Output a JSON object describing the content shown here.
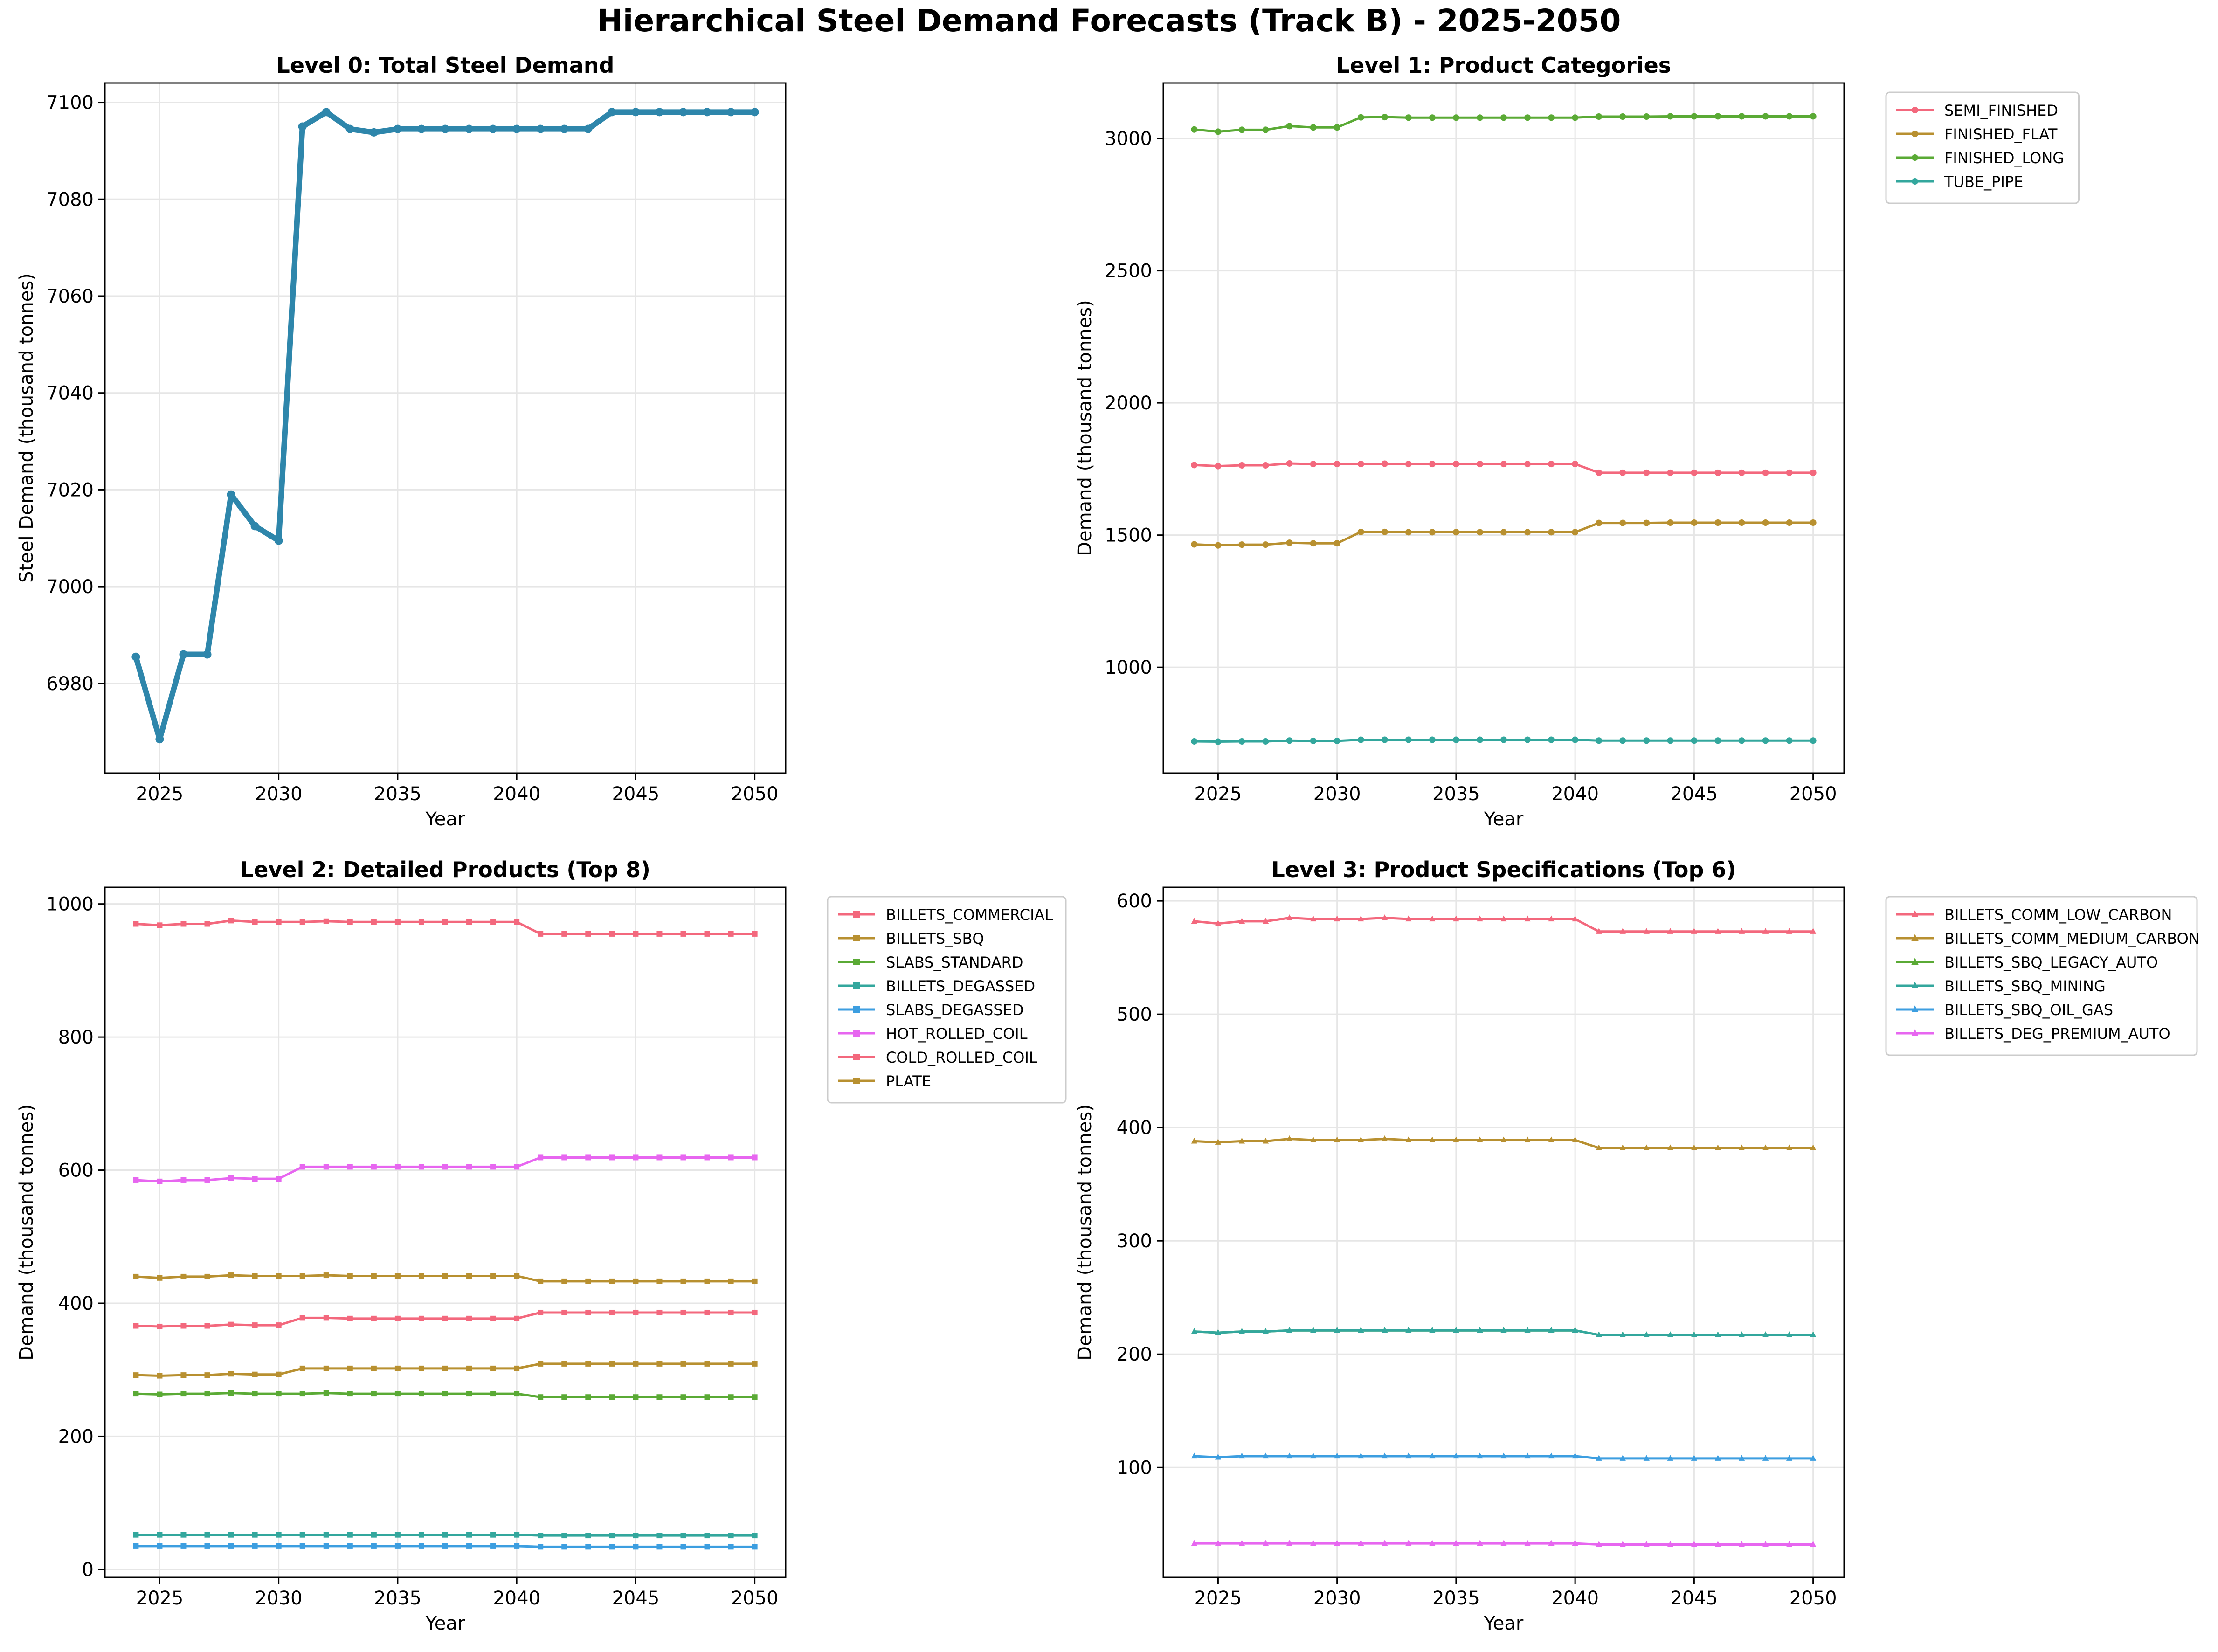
{
  "suptitle": "Hierarchical Steel Demand Forecasts (Track B) - 2025-2050",
  "chart_data": [
    {
      "id": "level0",
      "type": "line",
      "title": "Level 0: Total Steel Demand",
      "xlabel": "Year",
      "ylabel": "Steel Demand (thousand tonnes)",
      "xlim": [
        2022.7,
        2051.3
      ],
      "ylim": [
        6961.5,
        7104
      ],
      "xticks": [
        2025,
        2030,
        2035,
        2040,
        2045,
        2050
      ],
      "yticks": [
        6980,
        7000,
        7020,
        7040,
        7060,
        7080,
        7100
      ],
      "grid": true,
      "legend": "none",
      "x": [
        2024,
        2025,
        2026,
        2027,
        2028,
        2029,
        2030,
        2031,
        2032,
        2033,
        2034,
        2035,
        2036,
        2037,
        2038,
        2039,
        2040,
        2041,
        2042,
        2043,
        2044,
        2045,
        2046,
        2047,
        2048,
        2049,
        2050
      ],
      "series": [
        {
          "color": "#2e86ab",
          "marker": "circle",
          "width": "thick",
          "values": [
            6985.5,
            6968.5,
            6986,
            6986,
            7019,
            7012.5,
            7009.5,
            7095,
            7098,
            7094.5,
            7093.8,
            7094.5,
            7094.5,
            7094.5,
            7094.5,
            7094.5,
            7094.5,
            7094.5,
            7094.5,
            7094.5,
            7098,
            7098,
            7098,
            7098,
            7098,
            7098,
            7098
          ]
        }
      ]
    },
    {
      "id": "level1",
      "type": "line",
      "title": "Level 1: Product Categories",
      "xlabel": "Year",
      "ylabel": "Demand (thousand tonnes)",
      "xlim": [
        2022.7,
        2051.3
      ],
      "ylim": [
        600,
        3210
      ],
      "xticks": [
        2025,
        2030,
        2035,
        2040,
        2045,
        2050
      ],
      "yticks": [
        1000,
        1500,
        2000,
        2500,
        3000
      ],
      "grid": true,
      "legend": "outside-upper-right",
      "x": [
        2024,
        2025,
        2026,
        2027,
        2028,
        2029,
        2030,
        2031,
        2032,
        2033,
        2034,
        2035,
        2036,
        2037,
        2038,
        2039,
        2040,
        2041,
        2042,
        2043,
        2044,
        2045,
        2046,
        2047,
        2048,
        2049,
        2050
      ],
      "series": [
        {
          "name": "SEMI_FINISHED",
          "color": "#f3687d",
          "marker": "circle",
          "values": [
            1765,
            1761,
            1764,
            1764,
            1771,
            1769,
            1769,
            1769,
            1770,
            1769,
            1769,
            1769,
            1769,
            1769,
            1769,
            1769,
            1769,
            1736,
            1736,
            1736,
            1736,
            1736,
            1736,
            1736,
            1736,
            1736,
            1736
          ]
        },
        {
          "name": "FINISHED_FLAT",
          "color": "#b89030",
          "marker": "circle",
          "values": [
            1465,
            1461,
            1464,
            1464,
            1471,
            1469,
            1469,
            1512,
            1512,
            1511,
            1511,
            1511,
            1511,
            1511,
            1511,
            1511,
            1511,
            1546,
            1546,
            1546,
            1547,
            1547,
            1547,
            1547,
            1547,
            1547,
            1547
          ]
        },
        {
          "name": "FINISHED_LONG",
          "color": "#5aaa35",
          "marker": "circle",
          "values": [
            3034,
            3026,
            3033,
            3033,
            3047,
            3042,
            3042,
            3080,
            3081,
            3079,
            3079,
            3079,
            3079,
            3079,
            3079,
            3079,
            3079,
            3083,
            3083,
            3083,
            3084,
            3084,
            3084,
            3084,
            3084,
            3084,
            3084
          ]
        },
        {
          "name": "TUBE_PIPE",
          "color": "#33a79d",
          "marker": "circle",
          "values": [
            720,
            719,
            720,
            720,
            723,
            722,
            722,
            726,
            726,
            726,
            726,
            726,
            726,
            726,
            726,
            726,
            726,
            723,
            723,
            723,
            723,
            723,
            723,
            723,
            723,
            723,
            723
          ]
        }
      ]
    },
    {
      "id": "level2",
      "type": "line",
      "title": "Level 2: Detailed Products (Top 8)",
      "xlabel": "Year",
      "ylabel": "Demand (thousand tonnes)",
      "xlim": [
        2022.7,
        2051.3
      ],
      "ylim": [
        -12,
        1025
      ],
      "xticks": [
        2025,
        2030,
        2035,
        2040,
        2045,
        2050
      ],
      "yticks": [
        0,
        200,
        400,
        600,
        800,
        1000
      ],
      "grid": true,
      "legend": "outside-upper-right",
      "x": [
        2024,
        2025,
        2026,
        2027,
        2028,
        2029,
        2030,
        2031,
        2032,
        2033,
        2034,
        2035,
        2036,
        2037,
        2038,
        2039,
        2040,
        2041,
        2042,
        2043,
        2044,
        2045,
        2046,
        2047,
        2048,
        2049,
        2050
      ],
      "series": [
        {
          "name": "BILLETS_COMMERCIAL",
          "color": "#f3687d",
          "marker": "square",
          "values": [
            970,
            968,
            970,
            970,
            975,
            973,
            973,
            973,
            974,
            973,
            973,
            973,
            973,
            973,
            973,
            973,
            973,
            955,
            955,
            955,
            955,
            955,
            955,
            955,
            955,
            955,
            955
          ]
        },
        {
          "name": "BILLETS_SBQ",
          "color": "#b89030",
          "marker": "square",
          "values": [
            440,
            438,
            440,
            440,
            442,
            441,
            441,
            441,
            442,
            441,
            441,
            441,
            441,
            441,
            441,
            441,
            441,
            433,
            433,
            433,
            433,
            433,
            433,
            433,
            433,
            433,
            433
          ]
        },
        {
          "name": "SLABS_STANDARD",
          "color": "#5aaa35",
          "marker": "square",
          "values": [
            264,
            263,
            264,
            264,
            265,
            264,
            264,
            264,
            265,
            264,
            264,
            264,
            264,
            264,
            264,
            264,
            264,
            259,
            259,
            259,
            259,
            259,
            259,
            259,
            259,
            259,
            259
          ]
        },
        {
          "name": "BILLETS_DEGASSED",
          "color": "#33a79d",
          "marker": "square",
          "values": [
            52,
            52,
            52,
            52,
            52,
            52,
            52,
            52,
            52,
            52,
            52,
            52,
            52,
            52,
            52,
            52,
            52,
            51,
            51,
            51,
            51,
            51,
            51,
            51,
            51,
            51,
            51
          ]
        },
        {
          "name": "SLABS_DEGASSED",
          "color": "#3c9ee0",
          "marker": "square",
          "values": [
            35,
            35,
            35,
            35,
            35,
            35,
            35,
            35,
            35,
            35,
            35,
            35,
            35,
            35,
            35,
            35,
            35,
            34,
            34,
            34,
            34,
            34,
            34,
            34,
            34,
            34,
            34
          ]
        },
        {
          "name": "HOT_ROLLED_COIL",
          "color": "#e766f0",
          "marker": "square",
          "values": [
            585,
            583,
            585,
            585,
            588,
            587,
            587,
            605,
            605,
            605,
            605,
            605,
            605,
            605,
            605,
            605,
            605,
            619,
            619,
            619,
            619,
            619,
            619,
            619,
            619,
            619,
            619
          ]
        },
        {
          "name": "COLD_ROLLED_COIL",
          "color": "#f3687d",
          "marker": "square",
          "values": [
            366,
            365,
            366,
            366,
            368,
            367,
            367,
            378,
            378,
            377,
            377,
            377,
            377,
            377,
            377,
            377,
            377,
            386,
            386,
            386,
            386,
            386,
            386,
            386,
            386,
            386,
            386
          ]
        },
        {
          "name": "PLATE",
          "color": "#b89030",
          "marker": "square",
          "values": [
            292,
            291,
            292,
            292,
            294,
            293,
            293,
            302,
            302,
            302,
            302,
            302,
            302,
            302,
            302,
            302,
            302,
            309,
            309,
            309,
            309,
            309,
            309,
            309,
            309,
            309,
            309
          ]
        }
      ]
    },
    {
      "id": "level3",
      "type": "line",
      "title": "Level 3: Product Specifications (Top 6)",
      "xlabel": "Year",
      "ylabel": "Demand (thousand tonnes)",
      "xlim": [
        2022.7,
        2051.3
      ],
      "ylim": [
        3,
        612
      ],
      "xticks": [
        2025,
        2030,
        2035,
        2040,
        2045,
        2050
      ],
      "yticks": [
        100,
        200,
        300,
        400,
        500,
        600
      ],
      "grid": true,
      "legend": "outside-upper-right",
      "x": [
        2024,
        2025,
        2026,
        2027,
        2028,
        2029,
        2030,
        2031,
        2032,
        2033,
        2034,
        2035,
        2036,
        2037,
        2038,
        2039,
        2040,
        2041,
        2042,
        2043,
        2044,
        2045,
        2046,
        2047,
        2048,
        2049,
        2050
      ],
      "series": [
        {
          "name": "BILLETS_COMM_LOW_CARBON",
          "color": "#f3687d",
          "marker": "triangle",
          "values": [
            582,
            580,
            582,
            582,
            585,
            584,
            584,
            584,
            585,
            584,
            584,
            584,
            584,
            584,
            584,
            584,
            584,
            573,
            573,
            573,
            573,
            573,
            573,
            573,
            573,
            573,
            573
          ]
        },
        {
          "name": "BILLETS_COMM_MEDIUM_CARBON",
          "color": "#b89030",
          "marker": "triangle",
          "values": [
            388,
            387,
            388,
            388,
            390,
            389,
            389,
            389,
            390,
            389,
            389,
            389,
            389,
            389,
            389,
            389,
            389,
            382,
            382,
            382,
            382,
            382,
            382,
            382,
            382,
            382,
            382
          ]
        },
        {
          "name": "BILLETS_SBQ_LEGACY_AUTO",
          "color": "#5aaa35",
          "marker": "triangle",
          "values": [
            220,
            219,
            220,
            220,
            221,
            221,
            221,
            221,
            221,
            221,
            221,
            221,
            221,
            221,
            221,
            221,
            221,
            217,
            217,
            217,
            217,
            217,
            217,
            217,
            217,
            217,
            217
          ]
        },
        {
          "name": "BILLETS_SBQ_MINING",
          "color": "#33a79d",
          "marker": "triangle",
          "values": [
            220,
            219,
            220,
            220,
            221,
            221,
            221,
            221,
            221,
            221,
            221,
            221,
            221,
            221,
            221,
            221,
            221,
            217,
            217,
            217,
            217,
            217,
            217,
            217,
            217,
            217,
            217
          ]
        },
        {
          "name": "BILLETS_SBQ_OIL_GAS",
          "color": "#3c9ee0",
          "marker": "triangle",
          "values": [
            110,
            109,
            110,
            110,
            110,
            110,
            110,
            110,
            110,
            110,
            110,
            110,
            110,
            110,
            110,
            110,
            110,
            108,
            108,
            108,
            108,
            108,
            108,
            108,
            108,
            108,
            108
          ]
        },
        {
          "name": "BILLETS_DEG_PREMIUM_AUTO",
          "color": "#e766f0",
          "marker": "triangle",
          "values": [
            33,
            33,
            33,
            33,
            33,
            33,
            33,
            33,
            33,
            33,
            33,
            33,
            33,
            33,
            33,
            33,
            33,
            32,
            32,
            32,
            32,
            32,
            32,
            32,
            32,
            32,
            32
          ]
        }
      ]
    }
  ]
}
